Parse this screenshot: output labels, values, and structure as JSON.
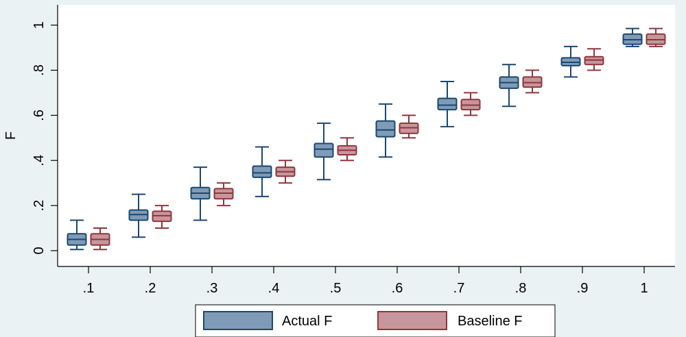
{
  "chart_data": {
    "type": "box",
    "categories": [
      ".1",
      ".2",
      ".3",
      ".4",
      ".5",
      ".6",
      ".7",
      ".8",
      ".9",
      "1"
    ],
    "ylabel": "F",
    "xlabel": "",
    "ylim": [
      -0.07,
      1.09
    ],
    "yticks": [
      0,
      0.2,
      0.4,
      0.6,
      0.8,
      1
    ],
    "ytick_labels": [
      "0",
      ".2",
      ".4",
      ".6",
      ".8",
      "1"
    ],
    "legend_position": "bottom",
    "series": [
      {
        "name": "Actual F",
        "fill": "#7f9bb7",
        "stroke": "#1a476f",
        "boxes": [
          {
            "min": 0.005,
            "q1": 0.025,
            "median": 0.05,
            "q3": 0.075,
            "max": 0.135
          },
          {
            "min": 0.06,
            "q1": 0.135,
            "median": 0.16,
            "q3": 0.18,
            "max": 0.25
          },
          {
            "min": 0.135,
            "q1": 0.23,
            "median": 0.255,
            "q3": 0.28,
            "max": 0.37
          },
          {
            "min": 0.24,
            "q1": 0.325,
            "median": 0.345,
            "q3": 0.375,
            "max": 0.46
          },
          {
            "min": 0.315,
            "q1": 0.415,
            "median": 0.45,
            "q3": 0.475,
            "max": 0.565
          },
          {
            "min": 0.415,
            "q1": 0.505,
            "median": 0.535,
            "q3": 0.575,
            "max": 0.65
          },
          {
            "min": 0.55,
            "q1": 0.625,
            "median": 0.645,
            "q3": 0.675,
            "max": 0.75
          },
          {
            "min": 0.64,
            "q1": 0.72,
            "median": 0.745,
            "q3": 0.77,
            "max": 0.825
          },
          {
            "min": 0.77,
            "q1": 0.82,
            "median": 0.835,
            "q3": 0.855,
            "max": 0.905
          },
          {
            "min": 0.905,
            "q1": 0.915,
            "median": 0.935,
            "q3": 0.96,
            "max": 0.985
          }
        ]
      },
      {
        "name": "Baseline F",
        "fill": "#c7969d",
        "stroke": "#90353b",
        "boxes": [
          {
            "min": 0.005,
            "q1": 0.025,
            "median": 0.05,
            "q3": 0.075,
            "max": 0.1
          },
          {
            "min": 0.1,
            "q1": 0.13,
            "median": 0.155,
            "q3": 0.175,
            "max": 0.2
          },
          {
            "min": 0.2,
            "q1": 0.23,
            "median": 0.255,
            "q3": 0.275,
            "max": 0.3
          },
          {
            "min": 0.3,
            "q1": 0.33,
            "median": 0.35,
            "q3": 0.37,
            "max": 0.4
          },
          {
            "min": 0.4,
            "q1": 0.425,
            "median": 0.445,
            "q3": 0.465,
            "max": 0.5
          },
          {
            "min": 0.5,
            "q1": 0.52,
            "median": 0.545,
            "q3": 0.565,
            "max": 0.6
          },
          {
            "min": 0.6,
            "q1": 0.625,
            "median": 0.645,
            "q3": 0.67,
            "max": 0.7
          },
          {
            "min": 0.7,
            "q1": 0.725,
            "median": 0.745,
            "q3": 0.77,
            "max": 0.8
          },
          {
            "min": 0.8,
            "q1": 0.825,
            "median": 0.845,
            "q3": 0.86,
            "max": 0.895
          },
          {
            "min": 0.905,
            "q1": 0.915,
            "median": 0.935,
            "q3": 0.96,
            "max": 0.985
          }
        ]
      }
    ]
  }
}
